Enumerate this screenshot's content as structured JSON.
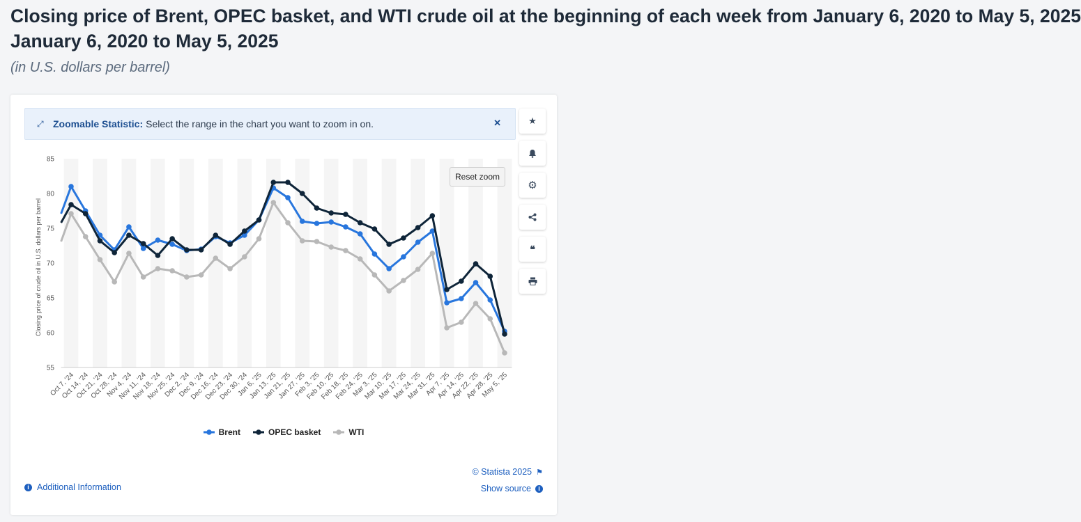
{
  "header": {
    "title": "Closing price of Brent, OPEC basket, and WTI crude oil at the beginning of each week from January 6, 2020 to May 5, 2025",
    "title_line2": "January 6, 2020 to May 5, 2025",
    "subtitle": "(in U.S. dollars per barrel)"
  },
  "zoombar": {
    "label": "Zoomable Statistic:",
    "text": "Select the range in the chart you want to zoom in on.",
    "icon": "expand-icon",
    "close_icon": "close-icon"
  },
  "buttons": {
    "reset_zoom": "Reset zoom"
  },
  "sidebar": [
    {
      "name": "star-icon",
      "glyph": "★"
    },
    {
      "name": "bell-icon",
      "glyph": "🔔"
    },
    {
      "name": "gear-icon",
      "glyph": "⚙"
    },
    {
      "name": "share-icon",
      "glyph": "⋖"
    },
    {
      "name": "quote-icon",
      "glyph": "❝"
    },
    {
      "name": "print-icon",
      "glyph": "⎙"
    }
  ],
  "footer": {
    "additional_info": "Additional Information",
    "copyright": "© Statista 2025",
    "show_source": "Show source"
  },
  "colors": {
    "brent": "#2876dd",
    "opec": "#0f2539",
    "wti": "#b8b8b8",
    "accent": "#1d5fbf"
  },
  "chart_data": {
    "type": "line",
    "title": "Closing price of Brent, OPEC basket, and WTI crude oil at the beginning of each week from January 6, 2020 to May 5, 2025",
    "ylabel": "Closing price of crude oil in U.S. dollars per barrel",
    "xlabel": "",
    "ylim": [
      55,
      85
    ],
    "yticks": [
      55,
      60,
      65,
      70,
      75,
      80,
      85
    ],
    "grid": "alternating vertical bands",
    "legend_position": "bottom-center",
    "categories": [
      "Oct 7, '24",
      "Oct 14, '24",
      "Oct 21, '24",
      "Oct 28, '24",
      "Nov 4, '24",
      "Nov 11, '24",
      "Nov 18, '24",
      "Nov 25, '24",
      "Dec 2, '24",
      "Dec 9, '24",
      "Dec 16, '24",
      "Dec 23, '24",
      "Dec 30, '24",
      "Jan 6, '25",
      "Jan 13, '25",
      "Jan 21, '25",
      "Jan 27, '25",
      "Feb 3, '25",
      "Feb 10, '25",
      "Feb 18, '25",
      "Feb 24, '25",
      "Mar 3, '25",
      "Mar 10, '25",
      "Mar 17, '25",
      "Mar 24, '25",
      "Mar 31, '25",
      "Apr 7, '25",
      "Apr 14, '25",
      "Apr 22, '25",
      "Apr 28, '25",
      "May 5, '25"
    ],
    "series": [
      {
        "name": "Brent",
        "color_key": "brent",
        "start": 77.1,
        "values": [
          81.0,
          77.5,
          74.0,
          71.9,
          75.2,
          72.1,
          73.3,
          72.7,
          71.8,
          72.0,
          73.8,
          72.9,
          74.0,
          76.2,
          80.8,
          79.4,
          76.0,
          75.7,
          75.9,
          75.2,
          74.2,
          71.3,
          69.2,
          70.9,
          73.0,
          74.6,
          64.3,
          64.9,
          67.2,
          64.7,
          60.2
        ]
      },
      {
        "name": "OPEC basket",
        "color_key": "opec",
        "start": 75.8,
        "values": [
          78.4,
          77.1,
          73.2,
          71.5,
          74.0,
          72.8,
          71.1,
          73.5,
          71.9,
          71.9,
          74.0,
          72.7,
          74.6,
          76.2,
          81.6,
          81.6,
          80.0,
          77.9,
          77.2,
          77.0,
          75.8,
          74.9,
          72.7,
          73.6,
          75.1,
          76.8,
          66.2,
          67.4,
          69.9,
          68.1,
          59.8
        ]
      },
      {
        "name": "WTI",
        "color_key": "wti",
        "start": 73.1,
        "values": [
          77.1,
          73.8,
          70.5,
          67.3,
          71.4,
          68.0,
          69.2,
          68.9,
          68.0,
          68.3,
          70.7,
          69.2,
          70.9,
          73.5,
          78.7,
          75.8,
          73.2,
          73.1,
          72.3,
          71.8,
          70.6,
          68.3,
          66.0,
          67.5,
          69.1,
          71.4,
          60.7,
          61.5,
          64.2,
          62.0,
          57.1
        ]
      }
    ]
  }
}
